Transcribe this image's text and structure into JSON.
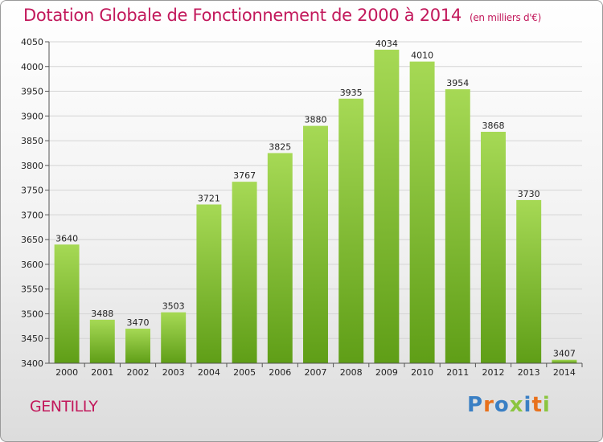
{
  "header": {
    "title": "Dotation Globale de Fonctionnement de 2000 à 2014",
    "unit": "(en milliers d'€)"
  },
  "footer": {
    "commune": "GENTILLY",
    "logo_letters": [
      "P",
      "r",
      "o",
      "x",
      "i",
      "t",
      "i"
    ],
    "logo_colors": [
      "#3a7fc4",
      "#e8711c",
      "#3a7fc4",
      "#8bc53f",
      "#3a7fc4",
      "#e8711c",
      "#8bc53f"
    ]
  },
  "colors": {
    "bar_top": "#a6d955",
    "bar_bottom": "#5f9e17",
    "title": "#c2185b",
    "grid": "#d4d4d4"
  },
  "chart_data": {
    "type": "bar",
    "title": "Dotation Globale de Fonctionnement de 2000 à 2014",
    "subtitle": "(en milliers d'€)",
    "xlabel": "",
    "ylabel": "",
    "categories": [
      "2000",
      "2001",
      "2002",
      "2003",
      "2004",
      "2005",
      "2006",
      "2007",
      "2008",
      "2009",
      "2010",
      "2011",
      "2012",
      "2013",
      "2014"
    ],
    "values": [
      3640,
      3488,
      3470,
      3503,
      3721,
      3767,
      3825,
      3880,
      3935,
      4034,
      4010,
      3954,
      3868,
      3730,
      3407
    ],
    "ylim": [
      3400,
      4050
    ],
    "yticks": [
      3400,
      3450,
      3500,
      3550,
      3600,
      3650,
      3700,
      3750,
      3800,
      3850,
      3900,
      3950,
      4000,
      4050
    ],
    "grid": true,
    "data_labels": true
  }
}
